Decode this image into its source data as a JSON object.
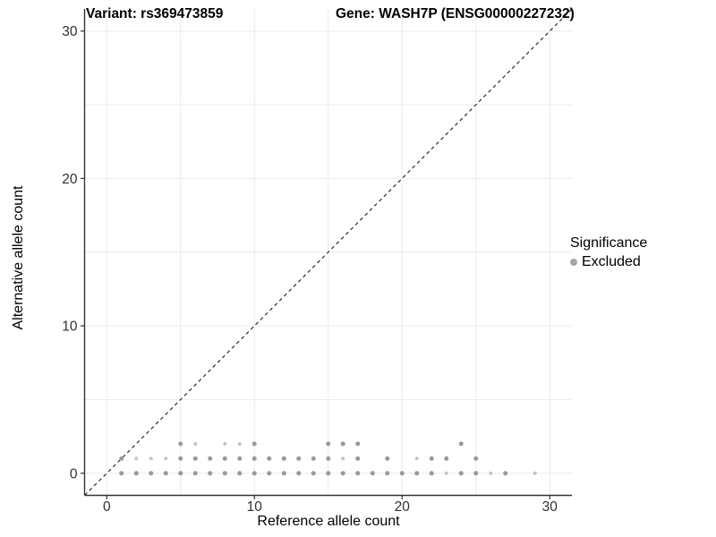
{
  "titles": {
    "left": "Variant: rs369473859",
    "right": "Gene: WASH7P (ENSG00000227232)"
  },
  "legend": {
    "title": "Significance",
    "items": [
      {
        "label": "Excluded",
        "color": "#a6a6a6"
      }
    ]
  },
  "colors": {
    "point_dark": "#999999",
    "point_light": "#c6c6c6",
    "grid": "#ececec",
    "axis_line": "#333333",
    "tick": "#333333",
    "tick_label": "#303030",
    "identity_line": "#1a1a1a"
  },
  "chart_data": {
    "type": "scatter",
    "title_left": "Variant: rs369473859",
    "title_right": "Gene: WASH7P (ENSG00000227232)",
    "xlabel": "Reference allele count",
    "ylabel": "Alternative allele count",
    "xlim": [
      -1.5,
      31.5
    ],
    "ylim": [
      -1.5,
      31.5
    ],
    "x_ticks": [
      0,
      10,
      20,
      30
    ],
    "y_ticks": [
      0,
      10,
      20,
      30
    ],
    "grid_x": [
      0,
      5,
      10,
      15,
      20,
      25,
      30
    ],
    "grid_y": [
      0,
      5,
      10,
      15,
      20,
      25,
      30
    ],
    "grid_on": true,
    "legend_position": "right",
    "identity_line": {
      "style": "dashed",
      "from": [
        -1.5,
        -1.5
      ],
      "to": [
        31.5,
        31.5
      ]
    },
    "series": [
      {
        "name": "Excluded",
        "points": [
          {
            "x": 1,
            "y": 0,
            "shade": "dark"
          },
          {
            "x": 2,
            "y": 0,
            "shade": "dark"
          },
          {
            "x": 3,
            "y": 0,
            "shade": "dark"
          },
          {
            "x": 4,
            "y": 0,
            "shade": "dark"
          },
          {
            "x": 5,
            "y": 0,
            "shade": "dark"
          },
          {
            "x": 6,
            "y": 0,
            "shade": "dark"
          },
          {
            "x": 7,
            "y": 0,
            "shade": "dark"
          },
          {
            "x": 8,
            "y": 0,
            "shade": "dark"
          },
          {
            "x": 9,
            "y": 0,
            "shade": "dark"
          },
          {
            "x": 10,
            "y": 0,
            "shade": "dark"
          },
          {
            "x": 11,
            "y": 0,
            "shade": "dark"
          },
          {
            "x": 12,
            "y": 0,
            "shade": "dark"
          },
          {
            "x": 13,
            "y": 0,
            "shade": "dark"
          },
          {
            "x": 14,
            "y": 0,
            "shade": "dark"
          },
          {
            "x": 15,
            "y": 0,
            "shade": "dark"
          },
          {
            "x": 16,
            "y": 0,
            "shade": "dark"
          },
          {
            "x": 17,
            "y": 0,
            "shade": "dark"
          },
          {
            "x": 18,
            "y": 0,
            "shade": "dark"
          },
          {
            "x": 19,
            "y": 0,
            "shade": "dark"
          },
          {
            "x": 20,
            "y": 0,
            "shade": "dark"
          },
          {
            "x": 21,
            "y": 0,
            "shade": "dark"
          },
          {
            "x": 22,
            "y": 0,
            "shade": "dark"
          },
          {
            "x": 23,
            "y": 0,
            "shade": "light"
          },
          {
            "x": 24,
            "y": 0,
            "shade": "dark"
          },
          {
            "x": 25,
            "y": 0,
            "shade": "dark"
          },
          {
            "x": 26,
            "y": 0,
            "shade": "light"
          },
          {
            "x": 27,
            "y": 0,
            "shade": "dark"
          },
          {
            "x": 29,
            "y": 0,
            "shade": "light"
          },
          {
            "x": 1,
            "y": 1,
            "shade": "dark"
          },
          {
            "x": 2,
            "y": 1,
            "shade": "light"
          },
          {
            "x": 3,
            "y": 1,
            "shade": "light"
          },
          {
            "x": 4,
            "y": 1,
            "shade": "light"
          },
          {
            "x": 5,
            "y": 1,
            "shade": "dark"
          },
          {
            "x": 6,
            "y": 1,
            "shade": "dark"
          },
          {
            "x": 7,
            "y": 1,
            "shade": "dark"
          },
          {
            "x": 8,
            "y": 1,
            "shade": "dark"
          },
          {
            "x": 9,
            "y": 1,
            "shade": "dark"
          },
          {
            "x": 10,
            "y": 1,
            "shade": "dark"
          },
          {
            "x": 11,
            "y": 1,
            "shade": "dark"
          },
          {
            "x": 12,
            "y": 1,
            "shade": "dark"
          },
          {
            "x": 13,
            "y": 1,
            "shade": "dark"
          },
          {
            "x": 14,
            "y": 1,
            "shade": "dark"
          },
          {
            "x": 15,
            "y": 1,
            "shade": "dark"
          },
          {
            "x": 16,
            "y": 1,
            "shade": "light"
          },
          {
            "x": 17,
            "y": 1,
            "shade": "dark"
          },
          {
            "x": 19,
            "y": 1,
            "shade": "dark"
          },
          {
            "x": 21,
            "y": 1,
            "shade": "light"
          },
          {
            "x": 22,
            "y": 1,
            "shade": "dark"
          },
          {
            "x": 23,
            "y": 1,
            "shade": "dark"
          },
          {
            "x": 25,
            "y": 1,
            "shade": "dark"
          },
          {
            "x": 5,
            "y": 2,
            "shade": "dark"
          },
          {
            "x": 6,
            "y": 2,
            "shade": "light"
          },
          {
            "x": 8,
            "y": 2,
            "shade": "light"
          },
          {
            "x": 9,
            "y": 2,
            "shade": "light"
          },
          {
            "x": 10,
            "y": 2,
            "shade": "dark"
          },
          {
            "x": 15,
            "y": 2,
            "shade": "dark"
          },
          {
            "x": 16,
            "y": 2,
            "shade": "dark"
          },
          {
            "x": 17,
            "y": 2,
            "shade": "dark"
          },
          {
            "x": 24,
            "y": 2,
            "shade": "dark"
          }
        ]
      }
    ]
  }
}
